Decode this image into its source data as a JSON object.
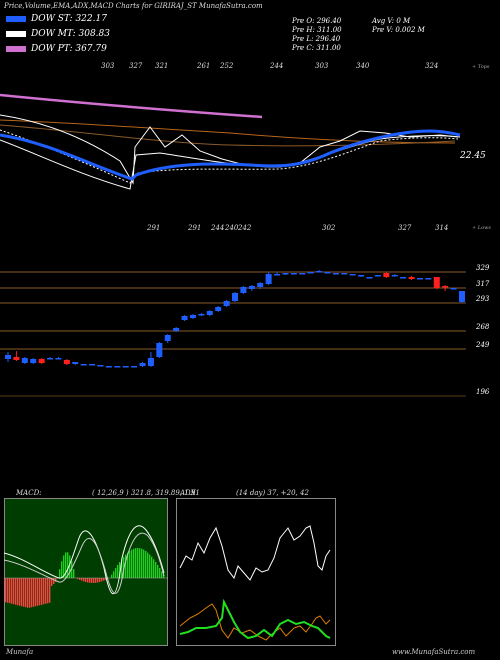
{
  "title": "Price,Volume,EMA,ADX,MACD Charts for GIRIRAJ_ST MunafaSutra.com",
  "legend": [
    {
      "label": "DOW ST: 322.17",
      "color": "#1f5fff"
    },
    {
      "label": "DOW MT: 308.83",
      "color": "#ffffff"
    },
    {
      "label": "DOW PT: 367.79",
      "color": "#d070d0"
    }
  ],
  "info_left": [
    "Pre O: 296.40",
    "Pre H: 311.00",
    "Pre L: 296.40",
    "Pre C: 311.00"
  ],
  "info_right": [
    "Avg V: 0  M",
    "Pre V: 0.002  M"
  ],
  "colors": {
    "up": "#1f5fff",
    "down": "#ff2020",
    "line": "#b5651d",
    "macd_pos": "#20d020",
    "macd_neg": "#ff4040",
    "adx_green": "#20e020",
    "adx_orange": "#e08000"
  },
  "top_panel": {
    "labels": [
      "303",
      "327",
      "321",
      "261",
      "252",
      "244",
      "303",
      "340",
      "324"
    ],
    "side_label": "+ Tops",
    "value_label": "22.45"
  },
  "chart_data": {
    "type": "candlestick",
    "bottom_labels": [
      "291",
      "291",
      "244",
      "240",
      "242",
      "302",
      "327",
      "314"
    ],
    "side_label": "+ Lows",
    "y_ticks": [
      "329",
      "317",
      "293",
      "268",
      "249",
      "196"
    ],
    "candles": [
      {
        "o": 258,
        "c": 254,
        "h": 261,
        "l": 251,
        "color": "up"
      },
      {
        "o": 253,
        "c": 256,
        "h": 262,
        "l": 252,
        "color": "down"
      },
      {
        "o": 255,
        "c": 250,
        "h": 256,
        "l": 249,
        "color": "up"
      },
      {
        "o": 250,
        "c": 254,
        "h": 255,
        "l": 249,
        "color": "up"
      },
      {
        "o": 254,
        "c": 250,
        "h": 255,
        "l": 249,
        "color": "down"
      },
      {
        "o": 255,
        "c": 255,
        "h": 256,
        "l": 255,
        "color": "up"
      },
      {
        "o": 255,
        "c": 255,
        "h": 256,
        "l": 255,
        "color": "up"
      },
      {
        "o": 253,
        "c": 249,
        "h": 254,
        "l": 248,
        "color": "down"
      },
      {
        "o": 251,
        "c": 249,
        "h": 251,
        "l": 248,
        "color": "up"
      },
      {
        "o": 249,
        "c": 249,
        "h": 249,
        "l": 248,
        "color": "up"
      },
      {
        "o": 249,
        "c": 248,
        "h": 249,
        "l": 248,
        "color": "up"
      },
      {
        "o": 248,
        "c": 247,
        "h": 248,
        "l": 247,
        "color": "up"
      },
      {
        "o": 247,
        "c": 247,
        "h": 247,
        "l": 247,
        "color": "up"
      },
      {
        "o": 247,
        "c": 247,
        "h": 247,
        "l": 247,
        "color": "up"
      },
      {
        "o": 247,
        "c": 247,
        "h": 247,
        "l": 247,
        "color": "up"
      },
      {
        "o": 247,
        "c": 247,
        "h": 247,
        "l": 247,
        "color": "up"
      },
      {
        "o": 250,
        "c": 247,
        "h": 251,
        "l": 246,
        "color": "up"
      },
      {
        "o": 255,
        "c": 247,
        "h": 261,
        "l": 246,
        "color": "up"
      },
      {
        "o": 270,
        "c": 256,
        "h": 271,
        "l": 255,
        "color": "up"
      },
      {
        "o": 278,
        "c": 272,
        "h": 279,
        "l": 270,
        "color": "up"
      },
      {
        "o": 285,
        "c": 282,
        "h": 286,
        "l": 281,
        "color": "up"
      },
      {
        "o": 297,
        "c": 293,
        "h": 298,
        "l": 292,
        "color": "up"
      },
      {
        "o": 298,
        "c": 295,
        "h": 299,
        "l": 294,
        "color": "up"
      },
      {
        "o": 299,
        "c": 298,
        "h": 300,
        "l": 297,
        "color": "up"
      },
      {
        "o": 302,
        "c": 298,
        "h": 303,
        "l": 297,
        "color": "up"
      },
      {
        "o": 306,
        "c": 302,
        "h": 307,
        "l": 301,
        "color": "up"
      },
      {
        "o": 312,
        "c": 307,
        "h": 313,
        "l": 306,
        "color": "up"
      },
      {
        "o": 320,
        "c": 312,
        "h": 321,
        "l": 311,
        "color": "up"
      },
      {
        "o": 326,
        "c": 320,
        "h": 327,
        "l": 319,
        "color": "up"
      },
      {
        "o": 327,
        "c": 324,
        "h": 328,
        "l": 322,
        "color": "up"
      },
      {
        "o": 330,
        "c": 326,
        "h": 331,
        "l": 324,
        "color": "up"
      },
      {
        "o": 339,
        "c": 329,
        "h": 341,
        "l": 328,
        "color": "up"
      },
      {
        "o": 339,
        "c": 339,
        "h": 341,
        "l": 338,
        "color": "up"
      },
      {
        "o": 340,
        "c": 340,
        "h": 340,
        "l": 338,
        "color": "up"
      },
      {
        "o": 340,
        "c": 340,
        "h": 340,
        "l": 340,
        "color": "up"
      },
      {
        "o": 340,
        "c": 340,
        "h": 340,
        "l": 339,
        "color": "up"
      },
      {
        "o": 341,
        "c": 341,
        "h": 341,
        "l": 341,
        "color": "up"
      },
      {
        "o": 342,
        "c": 342,
        "h": 343,
        "l": 341,
        "color": "up"
      },
      {
        "o": 341,
        "c": 341,
        "h": 341,
        "l": 340,
        "color": "up"
      },
      {
        "o": 340,
        "c": 340,
        "h": 340,
        "l": 340,
        "color": "up"
      },
      {
        "o": 340,
        "c": 340,
        "h": 340,
        "l": 340,
        "color": "up"
      },
      {
        "o": 339,
        "c": 339,
        "h": 339,
        "l": 339,
        "color": "up"
      },
      {
        "o": 338,
        "c": 337,
        "h": 338,
        "l": 336,
        "color": "up"
      },
      {
        "o": 336,
        "c": 336,
        "h": 336,
        "l": 336,
        "color": "up"
      },
      {
        "o": 338,
        "c": 338,
        "h": 338,
        "l": 338,
        "color": "up"
      },
      {
        "o": 340,
        "c": 336,
        "h": 341,
        "l": 335,
        "color": "down"
      },
      {
        "o": 338,
        "c": 338,
        "h": 339,
        "l": 337,
        "color": "up"
      },
      {
        "o": 336,
        "c": 336,
        "h": 336,
        "l": 336,
        "color": "up"
      },
      {
        "o": 336,
        "c": 334,
        "h": 337,
        "l": 333,
        "color": "down"
      },
      {
        "o": 335,
        "c": 335,
        "h": 335,
        "l": 335,
        "color": "up"
      },
      {
        "o": 335,
        "c": 335,
        "h": 335,
        "l": 335,
        "color": "up"
      },
      {
        "o": 336,
        "c": 325,
        "h": 336,
        "l": 324,
        "color": "down"
      },
      {
        "o": 327,
        "c": 326,
        "h": 328,
        "l": 322,
        "color": "down"
      },
      {
        "o": 325,
        "c": 325,
        "h": 325,
        "l": 324,
        "color": "up"
      },
      {
        "o": 322,
        "c": 311,
        "h": 322,
        "l": 310,
        "color": "up"
      }
    ]
  },
  "macd": {
    "title": "MACD:",
    "params": "( 12,26,9 ) 321.8, 319.89, 1.91"
  },
  "adx": {
    "title": "ADX",
    "params": "(14 day) 37, +20, 42"
  },
  "footer_left": "Munafa",
  "footer_right": "www.MunafaSutra.com"
}
